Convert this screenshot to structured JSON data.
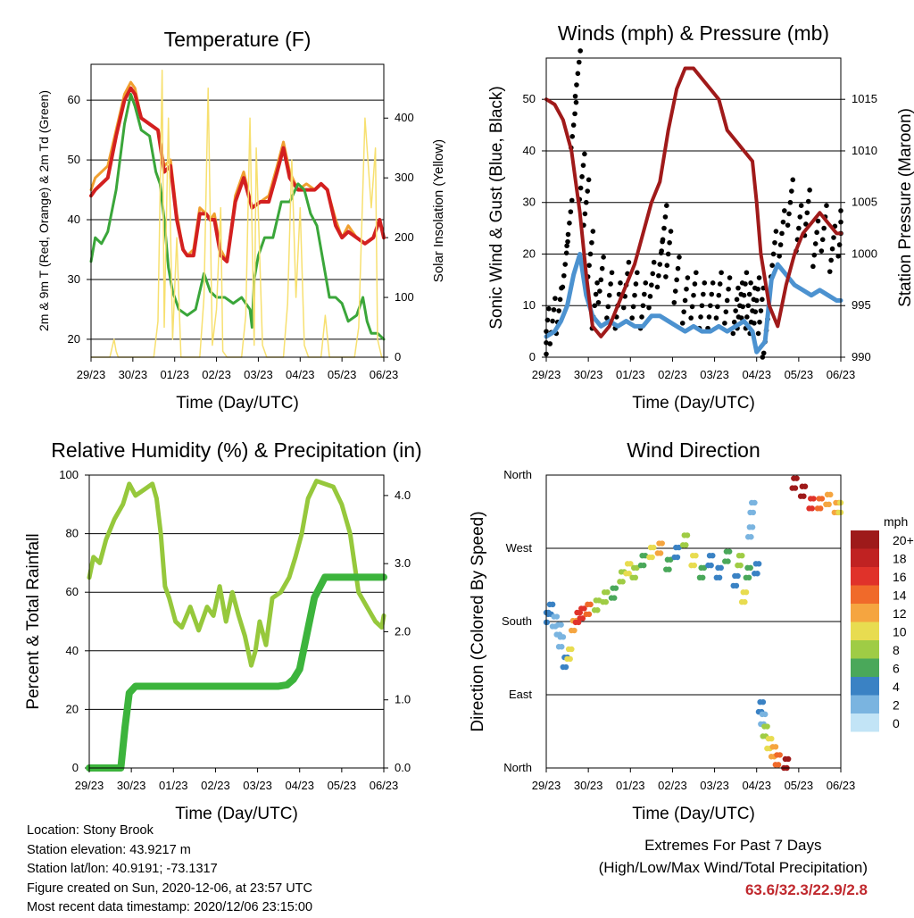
{
  "info": {
    "location": "Location: Stony Brook",
    "elevation": "Station elevation: 43.9217 m",
    "latlon": "Station lat/lon: 40.9191; -73.1317",
    "created": "Figure created on Sun, 2020-12-06, at 23:57 UTC",
    "recent": "Most recent data timestamp: 2020/12/06 23:15:00"
  },
  "extremes": {
    "title": "Extremes For Past 7 Days",
    "subtitle": "(High/Low/Max Wind/Total Precipitation)",
    "values": "63.6/32.3/22.9/2.8",
    "color": "#c0282d"
  },
  "chart_data": [
    {
      "type": "line",
      "title": "Temperature (F)",
      "xlabel": "Time (Day/UTC)",
      "ylabel": "2m & 9m T (Red, Orange) & 2m Td (Green)",
      "y2label": "Solar Insolation (Yellow)",
      "x_ticks": [
        "29/23",
        "30/23",
        "01/23",
        "02/23",
        "03/23",
        "04/23",
        "05/23",
        "06/23"
      ],
      "ylim": [
        17,
        66
      ],
      "y_ticks": [
        20,
        30,
        40,
        50,
        60
      ],
      "y2lim": [
        0,
        490
      ],
      "y2_ticks": [
        0,
        100,
        200,
        300,
        400
      ],
      "grid_y": true,
      "series": [
        {
          "name": "9m T",
          "axis": "left",
          "color": "#f0a030",
          "x": [
            0,
            0.1,
            0.25,
            0.4,
            0.6,
            0.8,
            0.95,
            1.05,
            1.2,
            1.4,
            1.6,
            1.75,
            1.9,
            2.05,
            2.2,
            2.3,
            2.45,
            2.6,
            2.75,
            2.85,
            2.95,
            3.1,
            3.25,
            3.45,
            3.65,
            3.85,
            4.05,
            4.25,
            4.45,
            4.6,
            4.75,
            4.95,
            5.15,
            5.35,
            5.5,
            5.65,
            5.85,
            6.0,
            6.15,
            6.35,
            6.55,
            6.75,
            6.9,
            7.0
          ],
          "values": [
            45,
            47,
            48,
            49,
            55,
            61,
            63,
            62,
            57,
            56,
            55,
            49,
            50,
            41,
            35,
            34,
            35,
            42,
            41,
            40,
            41,
            35,
            33,
            44,
            48,
            42,
            43,
            44,
            49,
            53,
            48,
            45,
            46,
            45,
            46,
            45,
            40,
            37,
            39,
            37,
            36,
            37,
            40,
            37
          ]
        },
        {
          "name": "2m T",
          "axis": "left",
          "color": "#d32020",
          "x": [
            0,
            0.1,
            0.25,
            0.4,
            0.6,
            0.8,
            0.95,
            1.05,
            1.2,
            1.4,
            1.6,
            1.75,
            1.9,
            2.05,
            2.2,
            2.3,
            2.45,
            2.6,
            2.75,
            2.85,
            2.95,
            3.1,
            3.25,
            3.45,
            3.65,
            3.85,
            4.05,
            4.25,
            4.45,
            4.6,
            4.75,
            4.95,
            5.15,
            5.35,
            5.5,
            5.65,
            5.85,
            6.0,
            6.15,
            6.35,
            6.55,
            6.75,
            6.9,
            7.0
          ],
          "values": [
            44,
            45,
            46,
            47,
            54,
            60,
            62,
            61,
            57,
            56,
            55,
            48,
            49,
            40,
            35,
            34,
            34,
            41,
            41,
            40,
            40,
            34,
            33,
            43,
            47,
            42,
            43,
            43,
            48,
            52,
            47,
            45,
            45,
            45,
            46,
            45,
            39,
            37,
            38,
            37,
            36,
            37,
            40,
            37
          ]
        },
        {
          "name": "2m Td",
          "axis": "left",
          "color": "#3aa63a",
          "x": [
            0,
            0.1,
            0.25,
            0.4,
            0.6,
            0.8,
            0.95,
            1.05,
            1.2,
            1.4,
            1.55,
            1.65,
            1.75,
            1.85,
            1.95,
            2.1,
            2.3,
            2.5,
            2.7,
            2.85,
            3.0,
            3.2,
            3.4,
            3.6,
            3.8,
            3.85,
            3.9,
            4.0,
            4.15,
            4.35,
            4.55,
            4.75,
            4.95,
            5.1,
            5.25,
            5.4,
            5.55,
            5.7,
            5.85,
            6.0,
            6.15,
            6.35,
            6.5,
            6.6,
            6.7,
            6.85,
            7.0
          ],
          "values": [
            33,
            37,
            36,
            38,
            45,
            56,
            61,
            59,
            55,
            54,
            48,
            46,
            40,
            32,
            28,
            25,
            24,
            25,
            31,
            28,
            27,
            27,
            26,
            27,
            25,
            22,
            30,
            34,
            37,
            37,
            43,
            43,
            46,
            45,
            41,
            39,
            33,
            27,
            27,
            26,
            23,
            24,
            27,
            23,
            21,
            21,
            20
          ]
        },
        {
          "name": "Solar",
          "axis": "right",
          "color": "#f7e070",
          "x": [
            0,
            0.45,
            0.55,
            0.6,
            0.65,
            1.5,
            1.6,
            1.7,
            1.75,
            1.85,
            1.95,
            2.05,
            2.15,
            2.6,
            2.7,
            2.8,
            2.9,
            3.0,
            3.1,
            3.15,
            3.25,
            3.6,
            3.7,
            3.8,
            3.9,
            3.95,
            4.1,
            4.2,
            4.6,
            4.7,
            4.8,
            4.9,
            5.0,
            5.1,
            5.2,
            5.5,
            5.6,
            5.7,
            6.3,
            6.4,
            6.55,
            6.7,
            6.8,
            6.85,
            6.95,
            7.0
          ],
          "values": [
            0,
            0,
            30,
            10,
            0,
            0,
            60,
            480,
            50,
            400,
            30,
            200,
            0,
            0,
            100,
            450,
            20,
            80,
            250,
            10,
            0,
            0,
            70,
            400,
            20,
            350,
            20,
            0,
            0,
            90,
            330,
            100,
            250,
            20,
            0,
            0,
            70,
            0,
            0,
            50,
            400,
            250,
            350,
            30,
            0,
            0
          ]
        }
      ]
    },
    {
      "type": "scatter",
      "title": "Winds (mph) & Pressure (mb)",
      "xlabel": "Time (Day/UTC)",
      "ylabel": "Sonic Wind & Gust (Blue, Black)",
      "y2label": "Station Pressure (Maroon)",
      "x_ticks": [
        "29/23",
        "30/23",
        "01/23",
        "02/23",
        "03/23",
        "04/23",
        "05/23",
        "06/23"
      ],
      "ylim": [
        0,
        58
      ],
      "y_ticks": [
        0,
        10,
        20,
        30,
        40,
        50
      ],
      "y2lim": [
        990,
        1019
      ],
      "y2_ticks": [
        990,
        995,
        1000,
        1005,
        1010,
        1015
      ],
      "grid_y": true,
      "series": [
        {
          "name": "Gust",
          "color": "#000000",
          "x": [
            0,
            0.15,
            0.3,
            0.45,
            0.55,
            0.65,
            0.75,
            0.85,
            0.95,
            1.05,
            1.15,
            1.3,
            1.5,
            1.7,
            1.9,
            2.1,
            2.3,
            2.5,
            2.7,
            2.8,
            2.9,
            3.1,
            3.3,
            3.5,
            3.7,
            3.9,
            4.1,
            4.3,
            4.5,
            4.6,
            4.7,
            4.8,
            4.9,
            5.0,
            5.1,
            5.2,
            5.4,
            5.6,
            5.8,
            6.0,
            6.2,
            6.4,
            6.6,
            6.8,
            7.0
          ],
          "values": [
            5,
            7,
            9,
            18,
            26,
            45,
            55,
            35,
            30,
            20,
            10,
            15,
            12,
            10,
            14,
            12,
            10,
            14,
            18,
            25,
            20,
            15,
            11,
            12,
            10,
            10,
            12,
            11,
            9,
            10,
            12,
            10,
            9,
            11,
            9,
            3,
            20,
            24,
            30,
            25,
            28,
            22,
            25,
            21,
            24
          ]
        },
        {
          "name": "Wind",
          "color": "#4c92d0",
          "x": [
            0,
            0.2,
            0.35,
            0.5,
            0.65,
            0.8,
            0.95,
            1.1,
            1.3,
            1.5,
            1.7,
            1.9,
            2.1,
            2.3,
            2.5,
            2.7,
            2.9,
            3.1,
            3.3,
            3.5,
            3.7,
            3.9,
            4.1,
            4.3,
            4.5,
            4.7,
            4.9,
            5.0,
            5.2,
            5.35,
            5.5,
            5.7,
            5.9,
            6.1,
            6.3,
            6.5,
            6.7,
            6.9,
            7.0
          ],
          "values": [
            4,
            5,
            7,
            10,
            16,
            20,
            12,
            8,
            6,
            7,
            6,
            7,
            6,
            6,
            8,
            8,
            7,
            6,
            5,
            6,
            5,
            5,
            6,
            5,
            6,
            7,
            5,
            1,
            3,
            15,
            18,
            16,
            14,
            13,
            12,
            13,
            12,
            11,
            11
          ]
        },
        {
          "name": "Pressure",
          "color": "#a01a1a",
          "axis": "right",
          "x": [
            0,
            0.2,
            0.4,
            0.6,
            0.8,
            0.95,
            1.1,
            1.3,
            1.5,
            1.7,
            1.9,
            2.1,
            2.3,
            2.5,
            2.7,
            2.9,
            3.1,
            3.3,
            3.5,
            3.7,
            3.9,
            4.1,
            4.3,
            4.5,
            4.7,
            4.9,
            5.0,
            5.1,
            5.3,
            5.5,
            5.7,
            5.9,
            6.1,
            6.3,
            6.5,
            6.7,
            6.9,
            7.0
          ],
          "values": [
            1015,
            1014.5,
            1013,
            1010,
            1004,
            998,
            993,
            992,
            993,
            995,
            997,
            999,
            1002,
            1005,
            1007,
            1012,
            1016,
            1018,
            1018,
            1017,
            1016,
            1015,
            1012,
            1011,
            1010,
            1009,
            1005,
            1000,
            995,
            993,
            997,
            1000,
            1002,
            1003,
            1004,
            1003,
            1002,
            1002
          ]
        }
      ]
    },
    {
      "type": "line",
      "title": "Relative Humidity (%) & Precipitation (in)",
      "xlabel": "Time (Day/UTC)",
      "ylabel": "Percent & Total Rainfall",
      "x_ticks": [
        "29/23",
        "30/23",
        "01/23",
        "02/23",
        "03/23",
        "04/23",
        "05/23",
        "06/23"
      ],
      "ylim": [
        0,
        100
      ],
      "y_ticks": [
        0,
        20,
        40,
        60,
        80,
        100
      ],
      "y2lim": [
        0,
        4.3
      ],
      "y2_ticks": [
        "0.0",
        "1.0",
        "2.0",
        "3.0",
        "4.0"
      ],
      "grid_y": true,
      "series": [
        {
          "name": "RH",
          "axis": "left",
          "color": "#96c83c",
          "x": [
            0,
            0.1,
            0.25,
            0.4,
            0.6,
            0.8,
            0.95,
            1.1,
            1.3,
            1.5,
            1.6,
            1.7,
            1.8,
            1.9,
            2.05,
            2.2,
            2.4,
            2.6,
            2.8,
            2.95,
            3.1,
            3.25,
            3.4,
            3.55,
            3.7,
            3.85,
            3.95,
            4.05,
            4.2,
            4.35,
            4.55,
            4.75,
            4.9,
            5.05,
            5.2,
            5.4,
            5.6,
            5.8,
            6.0,
            6.2,
            6.4,
            6.6,
            6.8,
            6.95,
            7.0
          ],
          "values": [
            65,
            72,
            70,
            78,
            85,
            90,
            97,
            93,
            95,
            97,
            92,
            80,
            62,
            58,
            50,
            48,
            55,
            47,
            55,
            52,
            62,
            50,
            60,
            52,
            45,
            35,
            40,
            50,
            42,
            58,
            60,
            65,
            72,
            80,
            92,
            98,
            97,
            96,
            90,
            80,
            60,
            55,
            50,
            48,
            52
          ]
        },
        {
          "name": "Total Precipitation",
          "axis": "right",
          "color": "#3cb43c",
          "x": [
            0,
            0.5,
            0.75,
            0.85,
            0.95,
            1.1,
            1.5,
            2,
            3,
            4,
            4.5,
            4.7,
            4.85,
            5.0,
            5.15,
            5.35,
            5.6,
            6.0,
            6.5,
            7.0
          ],
          "values": [
            0,
            0,
            0,
            0.6,
            1.1,
            1.2,
            1.2,
            1.2,
            1.2,
            1.2,
            1.2,
            1.22,
            1.3,
            1.45,
            1.9,
            2.5,
            2.8,
            2.8,
            2.8,
            2.8
          ]
        }
      ]
    },
    {
      "type": "scatter",
      "title": "Wind Direction",
      "xlabel": "Time (Day/UTC)",
      "ylabel": "Direction (Colored By Speed)",
      "x_ticks": [
        "29/23",
        "30/23",
        "01/23",
        "02/23",
        "03/23",
        "04/23",
        "05/23",
        "06/23"
      ],
      "y_ticks": [
        "North",
        "East",
        "South",
        "West",
        "North"
      ],
      "ylim": [
        0,
        360
      ],
      "grid_y": true,
      "colorbar": {
        "title": "mph",
        "labels": [
          "20+",
          "18",
          "16",
          "14",
          "12",
          "10",
          "8",
          "6",
          "4",
          "2",
          "0"
        ],
        "colors": [
          "#9e1a1a",
          "#c02222",
          "#e0322a",
          "#f06a2a",
          "#f5a540",
          "#e8dc50",
          "#9fcc45",
          "#4aa85a",
          "#3a82c4",
          "#7ab4e0",
          "#c2e4f6"
        ]
      },
      "series": [
        {
          "name": "Direction",
          "x": [
            0,
            0.1,
            0.2,
            0.3,
            0.35,
            0.45,
            0.55,
            0.65,
            0.75,
            0.85,
            1.0,
            1.2,
            1.4,
            1.6,
            1.8,
            1.95,
            2.1,
            2.3,
            2.5,
            2.7,
            2.9,
            3.1,
            3.3,
            3.5,
            3.7,
            3.9,
            4.1,
            4.3,
            4.5,
            4.6,
            4.7,
            4.8,
            4.85,
            4.9,
            5.0,
            5.1,
            5.15,
            5.2,
            5.3,
            5.4,
            5.5,
            5.7,
            5.9,
            6.1,
            6.3,
            6.5,
            6.7,
            6.9,
            7.0
          ],
          "values": [
            185,
            195,
            180,
            170,
            155,
            130,
            140,
            175,
            185,
            190,
            195,
            200,
            210,
            215,
            235,
            245,
            240,
            255,
            265,
            270,
            250,
            265,
            280,
            255,
            240,
            255,
            240,
            260,
            230,
            255,
            210,
            240,
            290,
            320,
            245,
            75,
            60,
            45,
            30,
            20,
            10,
            5,
            350,
            340,
            325,
            325,
            330,
            320,
            320
          ],
          "speeds": [
            3,
            3,
            2,
            2,
            2,
            4,
            10,
            12,
            16,
            16,
            14,
            8,
            7,
            6,
            7,
            10,
            8,
            6,
            9,
            12,
            6,
            4,
            7,
            9,
            6,
            3,
            4,
            6,
            4,
            8,
            10,
            6,
            2,
            2,
            4,
            3,
            2,
            8,
            10,
            12,
            14,
            22,
            22,
            20,
            16,
            14,
            12,
            12,
            10
          ]
        }
      ]
    }
  ]
}
